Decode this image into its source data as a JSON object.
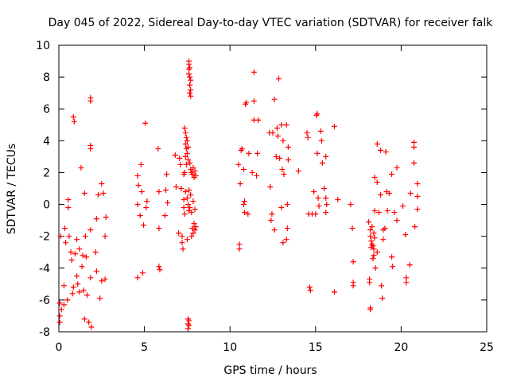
{
  "chart_data": {
    "type": "scatter",
    "title": "Day 045 of 2022, Sidereal Day-to-day VTEC variation (SDTVAR) for receiver falk",
    "xlabel": "GPS time / hours",
    "ylabel": "SDTVAR / TECUs",
    "xlim": [
      0,
      25
    ],
    "ylim": [
      -8,
      10
    ],
    "xticks": [
      "0",
      "5",
      "10",
      "15",
      "20",
      "25"
    ],
    "yticks": [
      "-8",
      "-6",
      "-4",
      "-2",
      "0",
      "2",
      "4",
      "6",
      "8",
      "10"
    ],
    "grid": false,
    "legend": "none",
    "marker": "plus",
    "color": "#ff0000",
    "series": [
      {
        "name": "SDTVAR",
        "points": [
          [
            0.05,
            -7.4
          ],
          [
            0.05,
            -7.0
          ],
          [
            0.05,
            -6.2
          ],
          [
            0.1,
            -2.0
          ],
          [
            0.15,
            -6.6
          ],
          [
            0.3,
            -6.3
          ],
          [
            0.3,
            -5.1
          ],
          [
            0.35,
            -1.5
          ],
          [
            0.4,
            -2.4
          ],
          [
            0.5,
            -6.0
          ],
          [
            0.55,
            0.3
          ],
          [
            0.55,
            -0.2
          ],
          [
            0.6,
            -2.0
          ],
          [
            0.7,
            -3.0
          ],
          [
            0.75,
            -3.5
          ],
          [
            0.8,
            -5.6
          ],
          [
            0.85,
            -5.2
          ],
          [
            0.85,
            5.5
          ],
          [
            0.9,
            5.2
          ],
          [
            0.95,
            -3.1
          ],
          [
            1.05,
            -2.2
          ],
          [
            1.05,
            -4.5
          ],
          [
            1.1,
            -5.0
          ],
          [
            1.2,
            -2.8
          ],
          [
            1.2,
            -5.5
          ],
          [
            1.3,
            2.3
          ],
          [
            1.35,
            -3.9
          ],
          [
            1.4,
            -3.2
          ],
          [
            1.45,
            -5.4
          ],
          [
            1.5,
            0.7
          ],
          [
            1.5,
            -7.2
          ],
          [
            1.55,
            -2.0
          ],
          [
            1.6,
            -3.3
          ],
          [
            1.65,
            -5.7
          ],
          [
            1.75,
            -7.4
          ],
          [
            1.85,
            6.7
          ],
          [
            1.85,
            6.5
          ],
          [
            1.85,
            3.7
          ],
          [
            1.85,
            3.5
          ],
          [
            1.85,
            -1.6
          ],
          [
            1.85,
            -4.6
          ],
          [
            1.9,
            -7.7
          ],
          [
            2.15,
            -3.0
          ],
          [
            2.2,
            -4.2
          ],
          [
            2.2,
            -0.9
          ],
          [
            2.3,
            0.6
          ],
          [
            2.4,
            -5.9
          ],
          [
            2.5,
            1.3
          ],
          [
            2.5,
            -4.8
          ],
          [
            2.6,
            0.7
          ],
          [
            2.7,
            -2.0
          ],
          [
            2.7,
            -4.7
          ],
          [
            2.75,
            -0.8
          ],
          [
            4.6,
            0.0
          ],
          [
            4.6,
            -4.6
          ],
          [
            4.6,
            1.8
          ],
          [
            4.65,
            1.2
          ],
          [
            4.75,
            -0.7
          ],
          [
            4.8,
            2.5
          ],
          [
            4.85,
            0.8
          ],
          [
            4.9,
            -4.3
          ],
          [
            4.95,
            -1.3
          ],
          [
            5.05,
            5.1
          ],
          [
            5.1,
            -0.2
          ],
          [
            5.15,
            0.2
          ],
          [
            5.8,
            3.5
          ],
          [
            5.85,
            0.8
          ],
          [
            5.85,
            -1.5
          ],
          [
            5.85,
            -3.9
          ],
          [
            5.9,
            -4.1
          ],
          [
            6.2,
            -0.7
          ],
          [
            6.25,
            0.9
          ],
          [
            6.3,
            1.9
          ],
          [
            6.35,
            0.1
          ],
          [
            6.8,
            3.1
          ],
          [
            6.85,
            1.1
          ],
          [
            7.0,
            -1.8
          ],
          [
            7.05,
            2.9
          ],
          [
            7.1,
            2.5
          ],
          [
            7.15,
            1.0
          ],
          [
            7.2,
            -2.0
          ],
          [
            7.2,
            -2.4
          ],
          [
            7.25,
            -2.8
          ],
          [
            7.3,
            1.9
          ],
          [
            7.3,
            0.3
          ],
          [
            7.3,
            -0.2
          ],
          [
            7.35,
            4.8
          ],
          [
            7.35,
            2.0
          ],
          [
            7.35,
            -0.6
          ],
          [
            7.4,
            4.5
          ],
          [
            7.4,
            3.8
          ],
          [
            7.4,
            3.0
          ],
          [
            7.4,
            0.8
          ],
          [
            7.45,
            4.2
          ],
          [
            7.45,
            3.5
          ],
          [
            7.45,
            2.5
          ],
          [
            7.5,
            4.0
          ],
          [
            7.5,
            3.2
          ],
          [
            7.5,
            0.4
          ],
          [
            7.5,
            -2.2
          ],
          [
            7.55,
            3.6
          ],
          [
            7.55,
            2.8
          ],
          [
            7.55,
            0.0
          ],
          [
            7.55,
            -7.8
          ],
          [
            7.55,
            -7.5
          ],
          [
            7.55,
            -7.2
          ],
          [
            7.6,
            9.0
          ],
          [
            7.6,
            8.8
          ],
          [
            7.6,
            8.5
          ],
          [
            7.6,
            8.2
          ],
          [
            7.6,
            0.9
          ],
          [
            7.6,
            -0.4
          ],
          [
            7.6,
            -7.6
          ],
          [
            7.6,
            -7.3
          ],
          [
            7.65,
            8.6
          ],
          [
            7.65,
            8.0
          ],
          [
            7.65,
            7.5
          ],
          [
            7.65,
            7.0
          ],
          [
            7.65,
            2.6
          ],
          [
            7.65,
            -0.2
          ],
          [
            7.7,
            7.8
          ],
          [
            7.7,
            7.2
          ],
          [
            7.7,
            6.8
          ],
          [
            7.7,
            2.2
          ],
          [
            7.7,
            0.6
          ],
          [
            7.75,
            2.0
          ],
          [
            7.75,
            -0.5
          ],
          [
            7.75,
            -2.0
          ],
          [
            7.8,
            1.9
          ],
          [
            7.8,
            -1.5
          ],
          [
            7.85,
            2.3
          ],
          [
            7.85,
            0.2
          ],
          [
            7.85,
            -1.8
          ],
          [
            7.9,
            1.7
          ],
          [
            7.9,
            -1.2
          ],
          [
            7.95,
            2.1
          ],
          [
            7.95,
            -0.3
          ],
          [
            7.95,
            -1.6
          ],
          [
            8.0,
            1.8
          ],
          [
            8.0,
            -1.4
          ],
          [
            10.5,
            2.5
          ],
          [
            10.55,
            -2.5
          ],
          [
            10.55,
            -2.8
          ],
          [
            10.6,
            1.3
          ],
          [
            10.65,
            3.4
          ],
          [
            10.7,
            3.5
          ],
          [
            10.8,
            2.2
          ],
          [
            10.8,
            0.0
          ],
          [
            10.85,
            0.2
          ],
          [
            10.85,
            -0.5
          ],
          [
            10.9,
            6.3
          ],
          [
            10.95,
            6.4
          ],
          [
            11.05,
            -0.6
          ],
          [
            11.1,
            3.2
          ],
          [
            11.3,
            2.0
          ],
          [
            11.4,
            8.3
          ],
          [
            11.4,
            6.5
          ],
          [
            11.4,
            5.3
          ],
          [
            11.55,
            1.8
          ],
          [
            11.6,
            3.2
          ],
          [
            11.65,
            5.3
          ],
          [
            12.3,
            4.5
          ],
          [
            12.35,
            1.1
          ],
          [
            12.4,
            -1.0
          ],
          [
            12.45,
            -0.6
          ],
          [
            12.5,
            4.5
          ],
          [
            12.6,
            -1.6
          ],
          [
            12.6,
            6.6
          ],
          [
            12.7,
            3.0
          ],
          [
            12.75,
            4.8
          ],
          [
            12.8,
            4.3
          ],
          [
            12.85,
            7.9
          ],
          [
            12.9,
            2.9
          ],
          [
            13.0,
            5.0
          ],
          [
            13.0,
            -0.2
          ],
          [
            13.05,
            2.2
          ],
          [
            13.1,
            4.0
          ],
          [
            13.1,
            -2.4
          ],
          [
            13.15,
            1.9
          ],
          [
            13.3,
            5.0
          ],
          [
            13.3,
            -2.2
          ],
          [
            13.35,
            0.0
          ],
          [
            13.35,
            -1.5
          ],
          [
            13.4,
            2.8
          ],
          [
            13.4,
            3.6
          ],
          [
            14.0,
            2.1
          ],
          [
            14.5,
            4.5
          ],
          [
            14.55,
            4.2
          ],
          [
            14.6,
            -0.6
          ],
          [
            14.65,
            -5.2
          ],
          [
            14.7,
            -5.4
          ],
          [
            14.8,
            -0.6
          ],
          [
            14.9,
            0.8
          ],
          [
            15.0,
            -0.6
          ],
          [
            15.05,
            5.6
          ],
          [
            15.1,
            5.7
          ],
          [
            15.1,
            3.2
          ],
          [
            15.15,
            0.4
          ],
          [
            15.2,
            -0.1
          ],
          [
            15.3,
            4.6
          ],
          [
            15.35,
            4.0
          ],
          [
            15.4,
            2.6
          ],
          [
            15.5,
            1.0
          ],
          [
            15.6,
            3.0
          ],
          [
            15.6,
            0.4
          ],
          [
            15.6,
            -0.5
          ],
          [
            15.65,
            0.0
          ],
          [
            16.1,
            4.9
          ],
          [
            16.1,
            -5.5
          ],
          [
            16.3,
            0.3
          ],
          [
            17.05,
            0.0
          ],
          [
            17.15,
            -1.5
          ],
          [
            17.2,
            -3.6
          ],
          [
            17.2,
            -4.9
          ],
          [
            17.2,
            -5.1
          ],
          [
            18.1,
            -1.1
          ],
          [
            18.15,
            -4.7
          ],
          [
            18.15,
            -4.9
          ],
          [
            18.2,
            -6.6
          ],
          [
            18.2,
            -6.5
          ],
          [
            18.2,
            -1.6
          ],
          [
            18.2,
            -2.0
          ],
          [
            18.25,
            -2.3
          ],
          [
            18.25,
            -2.7
          ],
          [
            18.3,
            -2.5
          ],
          [
            18.3,
            -1.4
          ],
          [
            18.35,
            -2.6
          ],
          [
            18.35,
            -3.4
          ],
          [
            18.4,
            -1.8
          ],
          [
            18.4,
            -2.8
          ],
          [
            18.4,
            -3.2
          ],
          [
            18.45,
            1.7
          ],
          [
            18.45,
            -0.4
          ],
          [
            18.45,
            -2.1
          ],
          [
            18.5,
            -4.0
          ],
          [
            18.6,
            3.8
          ],
          [
            18.6,
            1.4
          ],
          [
            18.6,
            -3.0
          ],
          [
            18.7,
            -0.5
          ],
          [
            18.8,
            3.4
          ],
          [
            18.8,
            0.6
          ],
          [
            18.85,
            -5.1
          ],
          [
            18.9,
            -5.9
          ],
          [
            18.95,
            -1.6
          ],
          [
            18.95,
            -2.2
          ],
          [
            19.05,
            -1.5
          ],
          [
            19.1,
            3.3
          ],
          [
            19.15,
            0.8
          ],
          [
            19.2,
            -0.4
          ],
          [
            19.3,
            0.7
          ],
          [
            19.45,
            1.9
          ],
          [
            19.45,
            -3.3
          ],
          [
            19.5,
            -3.9
          ],
          [
            19.6,
            -0.5
          ],
          [
            19.75,
            2.3
          ],
          [
            19.75,
            -1.0
          ],
          [
            20.1,
            -0.1
          ],
          [
            20.25,
            -1.9
          ],
          [
            20.3,
            -4.6
          ],
          [
            20.3,
            -4.9
          ],
          [
            20.5,
            -3.8
          ],
          [
            20.55,
            0.7
          ],
          [
            20.75,
            3.9
          ],
          [
            20.75,
            3.6
          ],
          [
            20.75,
            2.6
          ],
          [
            20.8,
            -1.4
          ],
          [
            20.95,
            1.3
          ],
          [
            20.95,
            0.5
          ],
          [
            20.95,
            -0.3
          ]
        ]
      }
    ]
  }
}
